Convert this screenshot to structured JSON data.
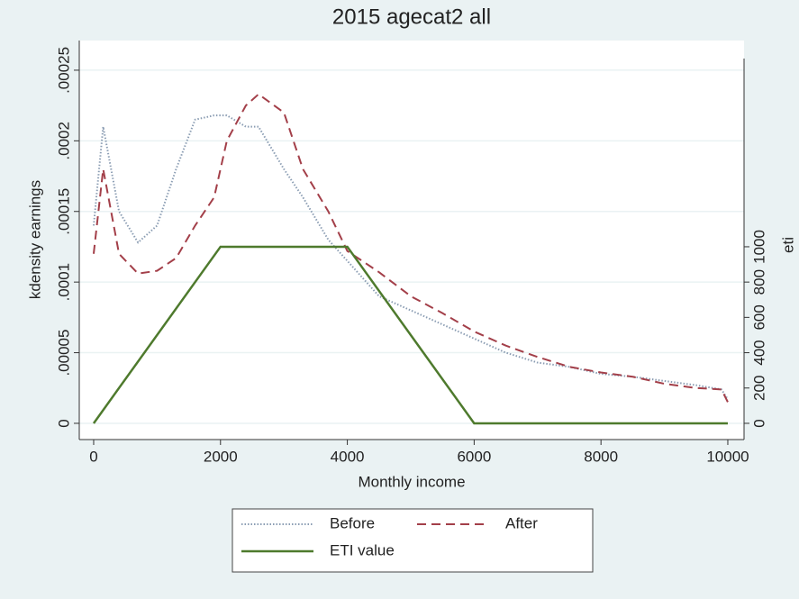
{
  "chart_data": {
    "type": "line",
    "title": "2015 agecat2 all",
    "xlabel": "Monthly income",
    "ylabel": "kdensity earnings",
    "y2label": "eti",
    "xlim": [
      -227,
      10256
    ],
    "xticks": [
      0,
      2000,
      4000,
      6000,
      8000,
      10000
    ],
    "ylim": [
      -1.15e-05,
      0.000271
    ],
    "yticks": [
      0,
      {
        "value": 5e-05,
        "label": ".00005"
      },
      {
        "value": 0.0001,
        "label": ".0001"
      },
      {
        "value": 0.00015,
        "label": ".00015"
      },
      {
        "value": 0.0002,
        "label": ".0002"
      },
      {
        "value": 0.00025,
        "label": ".00025"
      }
    ],
    "y2lim": [
      -92,
      2168
    ],
    "y2ticks": [
      0,
      200,
      400,
      600,
      800,
      1000
    ],
    "grid": true,
    "legend": "bottom",
    "series": [
      {
        "name": "Before",
        "color": "#8b9db3",
        "style": "dotted",
        "x": [
          0,
          150,
          400,
          700,
          1000,
          1300,
          1600,
          1900,
          2100,
          2400,
          2600,
          3000,
          3300,
          3700,
          4000,
          4500,
          5000,
          5500,
          6000,
          6500,
          7000,
          7500,
          8000,
          8500,
          9000,
          9500,
          9900,
          10000
        ],
        "values": [
          0.00014,
          0.00021,
          0.00015,
          0.000128,
          0.00014,
          0.00018,
          0.000215,
          0.000218,
          0.000218,
          0.00021,
          0.00021,
          0.00018,
          0.00016,
          0.00013,
          0.000115,
          9e-05,
          8e-05,
          7e-05,
          6e-05,
          5e-05,
          4.3e-05,
          4e-05,
          3.5e-05,
          3.3e-05,
          3e-05,
          2.7e-05,
          2.4e-05,
          1.7e-05
        ]
      },
      {
        "name": "After",
        "color": "#a33f49",
        "style": "dashed",
        "x": [
          0,
          150,
          400,
          700,
          1000,
          1300,
          1600,
          1900,
          2100,
          2400,
          2600,
          3000,
          3300,
          3700,
          4000,
          4500,
          5000,
          5500,
          6000,
          6500,
          7000,
          7500,
          8000,
          8500,
          9000,
          9500,
          9900,
          10000
        ],
        "values": [
          0.00012,
          0.00018,
          0.00012,
          0.000106,
          0.000108,
          0.000117,
          0.00014,
          0.00016,
          0.0002,
          0.000225,
          0.000233,
          0.00022,
          0.00018,
          0.00015,
          0.000122,
          0.000107,
          9e-05,
          7.8e-05,
          6.5e-05,
          5.5e-05,
          4.7e-05,
          4e-05,
          3.6e-05,
          3.3e-05,
          2.8e-05,
          2.5e-05,
          2.4e-05,
          1.5e-05
        ]
      },
      {
        "name": "ETI value",
        "color": "#4e7a2d",
        "style": "solid",
        "axis": "y2",
        "x": [
          0,
          2000,
          4000,
          6000,
          10000
        ],
        "values": [
          0,
          1000,
          1000,
          0,
          0
        ]
      }
    ]
  }
}
